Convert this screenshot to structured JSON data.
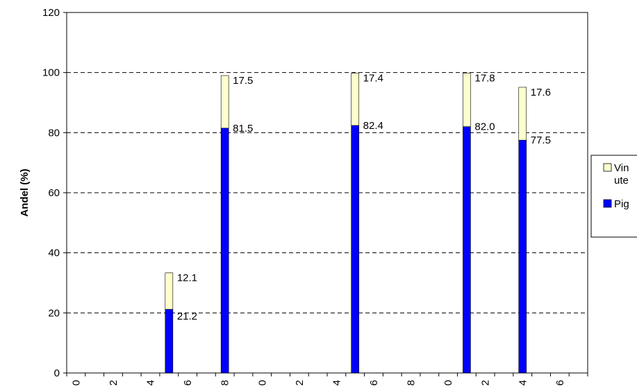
{
  "chart_data": {
    "type": "bar",
    "stacked": true,
    "ylabel": "Andel (%)",
    "xlabel": "",
    "ylim": [
      0,
      120
    ],
    "yticks": [
      0,
      20,
      40,
      60,
      80,
      100,
      120
    ],
    "grid": "horizontal dashed",
    "legend_position": "right (clipped)",
    "xtick_labels": [
      "0",
      "2",
      "4",
      "6",
      "8",
      "0",
      "2",
      "4",
      "6",
      "8",
      "0",
      "2",
      "4",
      "6"
    ],
    "bar_slots": [
      5,
      8,
      15,
      21,
      24
    ],
    "series": [
      {
        "name": "Pig",
        "color": "#0000ff",
        "values": [
          21.2,
          81.5,
          82.4,
          82.0,
          77.5
        ],
        "labels": [
          "21.2",
          "81.5",
          "82.4",
          "82.0",
          "77.5"
        ]
      },
      {
        "name": "Vin ute",
        "color": "#ffffcc",
        "values": [
          12.1,
          17.5,
          17.4,
          17.8,
          17.6
        ],
        "labels": [
          "12.1",
          "17.5",
          "17.4",
          "17.8",
          "17.6"
        ]
      }
    ],
    "legend_entries": [
      {
        "lines": [
          "Vin",
          "ute"
        ],
        "color": "#ffffcc"
      },
      {
        "lines": [
          "Pig"
        ],
        "color": "#0000ff"
      }
    ]
  }
}
